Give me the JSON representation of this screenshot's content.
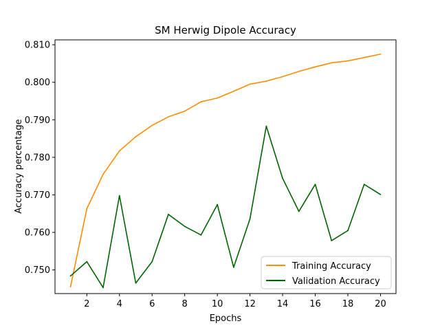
{
  "chart_data": {
    "type": "line",
    "title": "SM Herwig Dipole Accuracy",
    "xlabel": "Epochs",
    "ylabel": "Accuracy percentage",
    "x": [
      1,
      2,
      3,
      4,
      5,
      6,
      7,
      8,
      9,
      10,
      11,
      12,
      13,
      14,
      15,
      16,
      17,
      18,
      19,
      20
    ],
    "xticks": [
      "2",
      "4",
      "6",
      "8",
      "10",
      "12",
      "14",
      "16",
      "18",
      "20"
    ],
    "yticks": [
      "0.750",
      "0.760",
      "0.770",
      "0.780",
      "0.790",
      "0.800",
      "0.810"
    ],
    "xlim": [
      0.05,
      20.95
    ],
    "ylim": [
      0.7437,
      0.8113
    ],
    "grid": false,
    "legend_position": "lower right",
    "series": [
      {
        "name": "Training Accuracy",
        "color": "#ff8c00",
        "values": [
          0.7455,
          0.7663,
          0.7755,
          0.7817,
          0.7855,
          0.7885,
          0.7908,
          0.7923,
          0.7948,
          0.7958,
          0.7976,
          0.7995,
          0.8003,
          0.8015,
          0.8029,
          0.8041,
          0.8052,
          0.8057,
          0.8066,
          0.8075
        ]
      },
      {
        "name": "Validation Accuracy",
        "color": "#006400",
        "values": [
          0.7484,
          0.7522,
          0.7453,
          0.7698,
          0.7465,
          0.7522,
          0.7648,
          0.7616,
          0.7593,
          0.7674,
          0.7507,
          0.7636,
          0.7883,
          0.7744,
          0.7656,
          0.7728,
          0.7578,
          0.7605,
          0.7728,
          0.7701
        ]
      }
    ]
  }
}
